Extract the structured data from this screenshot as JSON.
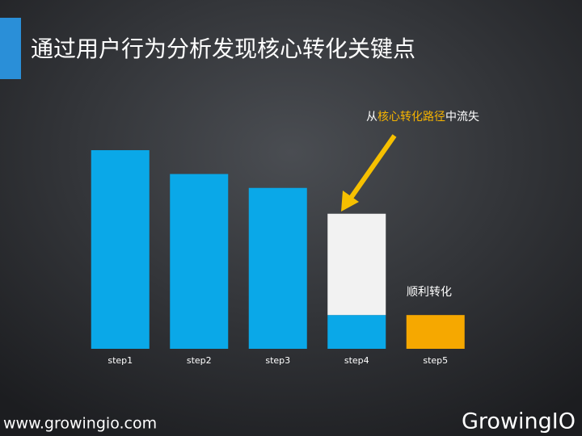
{
  "chart_data": {
    "type": "bar",
    "stacked": true,
    "title": "通过用户行为分析发现核心转化关键点",
    "categories": [
      "step1",
      "step2",
      "step3",
      "step4",
      "step5"
    ],
    "series": [
      {
        "color": "#0aa8e8",
        "values": [
          100,
          88,
          81,
          17,
          null
        ]
      },
      {
        "color": "#f2f2f2",
        "values": [
          null,
          null,
          null,
          51,
          null
        ]
      },
      {
        "color": "#f6a800",
        "values": [
          null,
          null,
          null,
          null,
          17
        ]
      }
    ],
    "ylim": [
      0,
      100
    ],
    "annotations": [
      {
        "parts": [
          {
            "text": "从",
            "color": "#ffffff"
          },
          {
            "text": "核心转化路径",
            "color": "#f6b400"
          },
          {
            "text": "中流失",
            "color": "#ffffff"
          }
        ]
      },
      {
        "parts": [
          {
            "text": "顺利转化",
            "color": "#ffffff"
          }
        ]
      }
    ]
  },
  "footer": {
    "url": "www.growingio.com",
    "logo": "GrowingIO"
  }
}
